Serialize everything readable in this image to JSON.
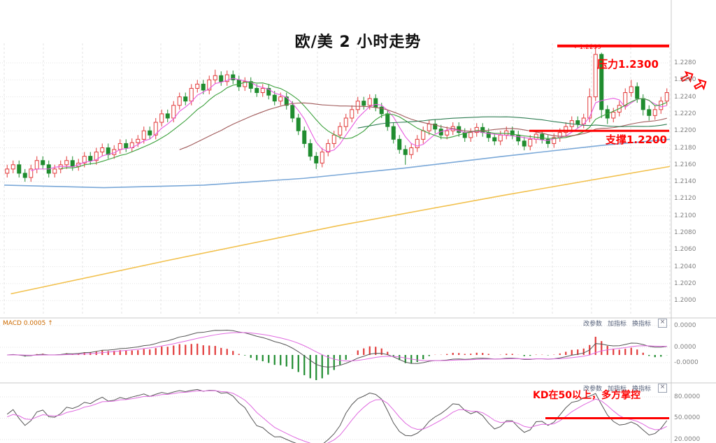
{
  "title": "欧/美 2 小时走势",
  "annotations": {
    "resistance_label": "压力1.2300",
    "price_tag": "←1.2299",
    "support_label": "支撑1.2200",
    "kd_note": "KD在50以上，多方掌控"
  },
  "macd_panel": {
    "label": "MACD 0.0005 ↑",
    "toolbar": [
      "改参数",
      "加指标",
      "换指标"
    ],
    "close_label": "×",
    "axis": [
      "0.0000",
      "0.0000",
      "-0.0000"
    ]
  },
  "kd_panel": {
    "toolbar": [
      "改参数",
      "加指标",
      "换指标"
    ],
    "close_label": "×",
    "axis": [
      "80.0000",
      "50.0000",
      "20.0000"
    ]
  },
  "colors": {
    "up": "#e23a3a",
    "down": "#1f8c2f",
    "annotation": "#fe0000",
    "grid": "#e3e3e3",
    "ma": [
      "#e85ae0",
      "#3aa03a",
      "#a05a5a",
      "#2e7d52"
    ],
    "trend_blue": "#7aa8d8",
    "trend_orange": "#f2c14e",
    "dif_line": "#555555",
    "dea_line": "#e06ae0"
  },
  "chart_data": {
    "type": "candlestick",
    "title": "欧/美 2 小时走势",
    "panels": [
      "price",
      "macd",
      "kd"
    ],
    "ylim": [
      1.1995,
      1.231
    ],
    "y_ticks": [
      "1.2280",
      "1.2260",
      "1.2240",
      "1.2220",
      "1.2200",
      "1.2180",
      "1.2160",
      "1.2140",
      "1.2120",
      "1.2100",
      "1.2080",
      "1.2060",
      "1.2040",
      "1.2020",
      "1.2000"
    ],
    "resistance": 1.23,
    "support": 1.22,
    "spike_high": 1.2299,
    "ma_periods": [
      5,
      10,
      30,
      60
    ],
    "macd": {
      "fast": 12,
      "slow": 26,
      "signal": 9
    },
    "kd": {
      "period": 9
    },
    "kd_reference": 50,
    "trend_lines": [
      {
        "name": "long-ma-blue-line",
        "color": "#7aa8d8",
        "points": [
          [
            0,
            1.2136
          ],
          [
            0.15,
            1.2133
          ],
          [
            0.3,
            1.2136
          ],
          [
            0.45,
            1.2144
          ],
          [
            0.6,
            1.2156
          ],
          [
            0.75,
            1.217
          ],
          [
            0.9,
            1.2183
          ],
          [
            1,
            1.219
          ]
        ]
      },
      {
        "name": "long-ma-orange-line",
        "color": "#f2c14e",
        "points": [
          [
            0.01,
            1.2008
          ],
          [
            0.25,
            1.2048
          ],
          [
            0.5,
            1.2088
          ],
          [
            0.75,
            1.2124
          ],
          [
            1,
            1.2158
          ]
        ]
      }
    ],
    "candles": [
      [
        1.215,
        1.216,
        1.2145,
        1.2155
      ],
      [
        1.2155,
        1.2165,
        1.215,
        1.216
      ],
      [
        1.216,
        1.2165,
        1.2145,
        1.215
      ],
      [
        1.215,
        1.2155,
        1.214,
        1.2145
      ],
      [
        1.2145,
        1.216,
        1.214,
        1.2155
      ],
      [
        1.2155,
        1.217,
        1.215,
        1.2165
      ],
      [
        1.2165,
        1.217,
        1.2155,
        1.216
      ],
      [
        1.216,
        1.2165,
        1.2145,
        1.215
      ],
      [
        1.215,
        1.216,
        1.2145,
        1.2155
      ],
      [
        1.2155,
        1.2165,
        1.215,
        1.216
      ],
      [
        1.216,
        1.217,
        1.2155,
        1.2165
      ],
      [
        1.2165,
        1.217,
        1.2153,
        1.2158
      ],
      [
        1.2158,
        1.2167,
        1.2153,
        1.2162
      ],
      [
        1.2162,
        1.2175,
        1.2157,
        1.217
      ],
      [
        1.217,
        1.2175,
        1.216,
        1.2165
      ],
      [
        1.2165,
        1.218,
        1.216,
        1.2175
      ],
      [
        1.2175,
        1.2185,
        1.217,
        1.218
      ],
      [
        1.218,
        1.2185,
        1.2167,
        1.2172
      ],
      [
        1.2172,
        1.2183,
        1.2167,
        1.2178
      ],
      [
        1.2178,
        1.219,
        1.2173,
        1.2185
      ],
      [
        1.2185,
        1.219,
        1.2175,
        1.218
      ],
      [
        1.218,
        1.2191,
        1.2175,
        1.2186
      ],
      [
        1.2186,
        1.2195,
        1.2181,
        1.219
      ],
      [
        1.219,
        1.2205,
        1.2185,
        1.22
      ],
      [
        1.22,
        1.2205,
        1.219,
        1.2195
      ],
      [
        1.2195,
        1.2215,
        1.219,
        1.221
      ],
      [
        1.221,
        1.2225,
        1.2205,
        1.222
      ],
      [
        1.222,
        1.2225,
        1.221,
        1.2215
      ],
      [
        1.2215,
        1.2235,
        1.221,
        1.223
      ],
      [
        1.223,
        1.2245,
        1.2225,
        1.224
      ],
      [
        1.224,
        1.2245,
        1.223,
        1.2235
      ],
      [
        1.2235,
        1.2255,
        1.223,
        1.225
      ],
      [
        1.225,
        1.226,
        1.2245,
        1.2255
      ],
      [
        1.2255,
        1.226,
        1.2243,
        1.2248
      ],
      [
        1.2248,
        1.2265,
        1.2243,
        1.226
      ],
      [
        1.226,
        1.2272,
        1.2255,
        1.2265
      ],
      [
        1.2265,
        1.227,
        1.2253,
        1.2258
      ],
      [
        1.2258,
        1.2271,
        1.2253,
        1.2266
      ],
      [
        1.2266,
        1.2271,
        1.2255,
        1.226
      ],
      [
        1.226,
        1.2265,
        1.2247,
        1.2252
      ],
      [
        1.2252,
        1.2263,
        1.2247,
        1.2258
      ],
      [
        1.2258,
        1.2263,
        1.2245,
        1.225
      ],
      [
        1.225,
        1.2255,
        1.224,
        1.2245
      ],
      [
        1.2245,
        1.2255,
        1.224,
        1.225
      ],
      [
        1.225,
        1.2255,
        1.2237,
        1.2242
      ],
      [
        1.2242,
        1.2247,
        1.223,
        1.2235
      ],
      [
        1.2235,
        1.2245,
        1.223,
        1.224
      ],
      [
        1.224,
        1.2245,
        1.2225,
        1.223
      ],
      [
        1.223,
        1.2235,
        1.221,
        1.2215
      ],
      [
        1.2215,
        1.222,
        1.2195,
        1.22
      ],
      [
        1.22,
        1.2205,
        1.218,
        1.2185
      ],
      [
        1.2185,
        1.219,
        1.2165,
        1.217
      ],
      [
        1.217,
        1.2175,
        1.2155,
        1.2162
      ],
      [
        1.2162,
        1.218,
        1.2157,
        1.2175
      ],
      [
        1.2175,
        1.219,
        1.217,
        1.2185
      ],
      [
        1.2185,
        1.22,
        1.218,
        1.2195
      ],
      [
        1.2195,
        1.221,
        1.219,
        1.2205
      ],
      [
        1.2205,
        1.222,
        1.22,
        1.2215
      ],
      [
        1.2215,
        1.223,
        1.221,
        1.2225
      ],
      [
        1.2225,
        1.224,
        1.222,
        1.2235
      ],
      [
        1.2235,
        1.224,
        1.2225,
        1.223
      ],
      [
        1.223,
        1.2243,
        1.2225,
        1.2238
      ],
      [
        1.2238,
        1.2243,
        1.2223,
        1.2228
      ],
      [
        1.2228,
        1.2233,
        1.2215,
        1.222
      ],
      [
        1.222,
        1.2225,
        1.22,
        1.2205
      ],
      [
        1.2205,
        1.221,
        1.2185,
        1.219
      ],
      [
        1.219,
        1.2195,
        1.2173,
        1.2178
      ],
      [
        1.2178,
        1.2183,
        1.216,
        1.2172
      ],
      [
        1.2172,
        1.2185,
        1.2167,
        1.218
      ],
      [
        1.218,
        1.2195,
        1.2175,
        1.219
      ],
      [
        1.219,
        1.2205,
        1.2185,
        1.22
      ],
      [
        1.22,
        1.2213,
        1.2195,
        1.2208
      ],
      [
        1.2208,
        1.2213,
        1.2197,
        1.2202
      ],
      [
        1.2202,
        1.2207,
        1.219,
        1.2195
      ],
      [
        1.2195,
        1.2205,
        1.219,
        1.22
      ],
      [
        1.22,
        1.221,
        1.2195,
        1.2205
      ],
      [
        1.2205,
        1.221,
        1.2193,
        1.2198
      ],
      [
        1.2198,
        1.2203,
        1.2187,
        1.2192
      ],
      [
        1.2192,
        1.2203,
        1.2187,
        1.2198
      ],
      [
        1.2198,
        1.2209,
        1.2193,
        1.2204
      ],
      [
        1.2204,
        1.2209,
        1.2193,
        1.2198
      ],
      [
        1.2198,
        1.2203,
        1.2187,
        1.2192
      ],
      [
        1.2192,
        1.2197,
        1.2183,
        1.2188
      ],
      [
        1.2188,
        1.22,
        1.2183,
        1.2195
      ],
      [
        1.2195,
        1.2205,
        1.219,
        1.22
      ],
      [
        1.22,
        1.2205,
        1.219,
        1.2195
      ],
      [
        1.2195,
        1.22,
        1.2183,
        1.2188
      ],
      [
        1.2188,
        1.2193,
        1.2177,
        1.2182
      ],
      [
        1.2182,
        1.2195,
        1.2177,
        1.219
      ],
      [
        1.219,
        1.2201,
        1.2185,
        1.2196
      ],
      [
        1.2196,
        1.2201,
        1.2185,
        1.219
      ],
      [
        1.219,
        1.2195,
        1.218,
        1.2185
      ],
      [
        1.2185,
        1.2197,
        1.218,
        1.2192
      ],
      [
        1.2192,
        1.2203,
        1.2187,
        1.2198
      ],
      [
        1.2198,
        1.221,
        1.2193,
        1.2205
      ],
      [
        1.2205,
        1.2217,
        1.22,
        1.2212
      ],
      [
        1.2212,
        1.2217,
        1.2203,
        1.2208
      ],
      [
        1.2208,
        1.222,
        1.2203,
        1.2215
      ],
      [
        1.2215,
        1.225,
        1.221,
        1.224
      ],
      [
        1.224,
        1.2299,
        1.2235,
        1.229
      ],
      [
        1.229,
        1.2292,
        1.2215,
        1.2225
      ],
      [
        1.2225,
        1.223,
        1.2208,
        1.2215
      ],
      [
        1.2215,
        1.2227,
        1.221,
        1.2222
      ],
      [
        1.2222,
        1.2235,
        1.2217,
        1.223
      ],
      [
        1.223,
        1.225,
        1.2225,
        1.2245
      ],
      [
        1.2245,
        1.226,
        1.224,
        1.2252
      ],
      [
        1.2252,
        1.2257,
        1.2233,
        1.2238
      ],
      [
        1.2238,
        1.2243,
        1.2218,
        1.2225
      ],
      [
        1.2225,
        1.223,
        1.2212,
        1.2218
      ],
      [
        1.2218,
        1.223,
        1.2213,
        1.2225
      ],
      [
        1.2225,
        1.224,
        1.222,
        1.2235
      ],
      [
        1.2235,
        1.225,
        1.223,
        1.2245
      ]
    ]
  }
}
